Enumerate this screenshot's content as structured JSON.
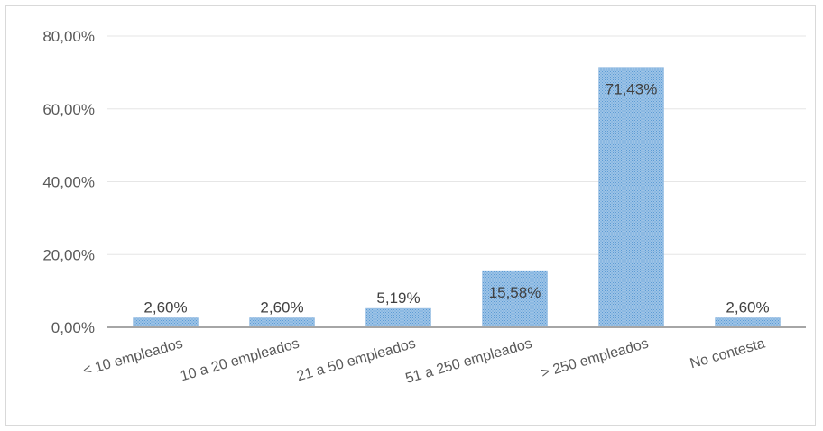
{
  "chart_data": {
    "type": "bar",
    "title": "",
    "xlabel": "",
    "ylabel": "",
    "categories": [
      "< 10 empleados",
      "10 a 20 empleados",
      "21 a 50 empleados",
      "51 a 250 empleados",
      "> 250 empleados",
      "No contesta"
    ],
    "values": [
      2.6,
      2.6,
      5.19,
      15.58,
      71.43,
      2.6
    ],
    "value_labels": [
      "2,60%",
      "2,60%",
      "5,19%",
      "15,58%",
      "71,43%",
      "2,60%"
    ],
    "ylim": [
      0,
      80
    ],
    "yticks": [
      0,
      20,
      40,
      60,
      80
    ],
    "ytick_labels": [
      "0,00%",
      "20,00%",
      "40,00%",
      "60,00%",
      "80,00%"
    ],
    "grid": true,
    "legend": "none",
    "bar_color": "#9dc3e6",
    "bar_pattern_color": "#5b9bd5"
  }
}
